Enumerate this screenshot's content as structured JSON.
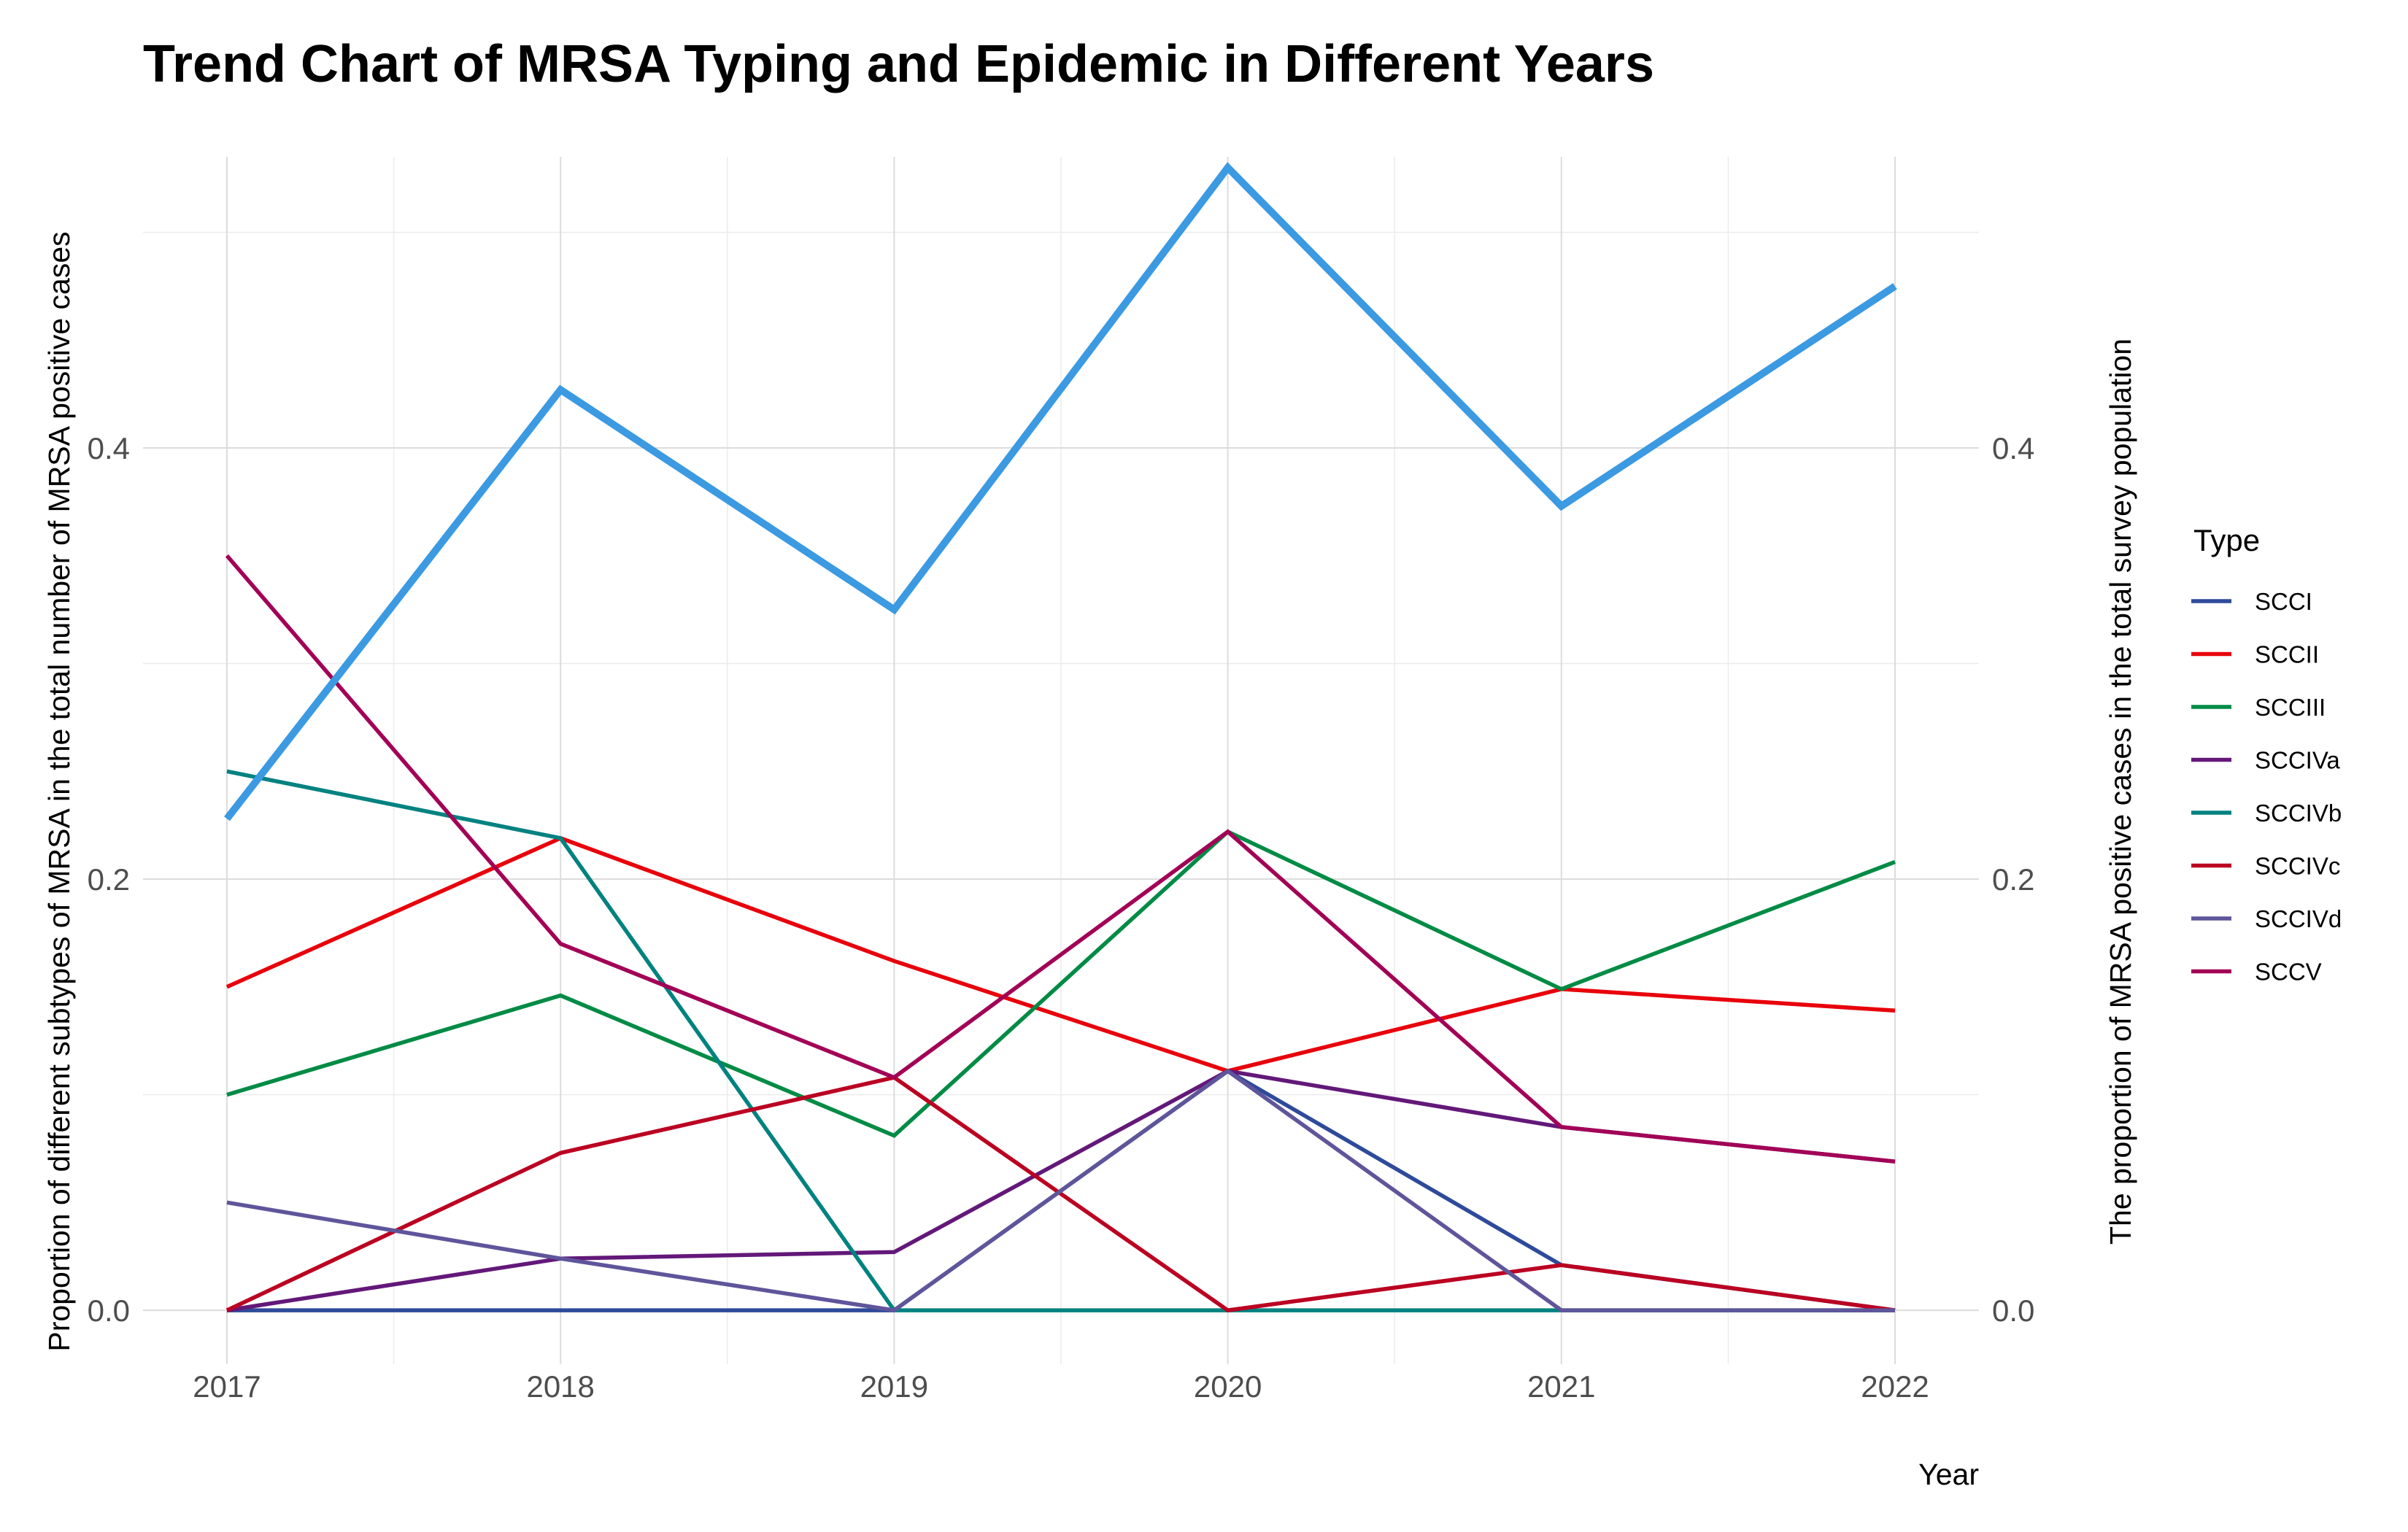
{
  "chart_data": {
    "type": "line",
    "title": "Trend Chart of MRSA Typing and Epidemic in Different Years",
    "xlabel": "Year",
    "ylabel_left": "Proportion of different subtypes of MRSA in the total number of MRSA positive cases",
    "ylabel_right": "The proportion of MRSA positive cases in the total survey population",
    "x": [
      "2017",
      "2018",
      "2019",
      "2020",
      "2021",
      "2022"
    ],
    "ylim": [
      -0.025,
      0.535
    ],
    "yticks": [
      0.0,
      0.2,
      0.4
    ],
    "ytick_labels": [
      "0.0",
      "0.2",
      "0.4"
    ],
    "grid": true,
    "legend_title": "Type",
    "legend_position": "right",
    "series": [
      {
        "name": "SCCI",
        "color": "#2e4a9a",
        "values": [
          0.0,
          0.0,
          0.0,
          0.111,
          0.021,
          0.0
        ]
      },
      {
        "name": "SCCII",
        "color": "#e8000b",
        "values": [
          0.15,
          0.219,
          0.162,
          0.111,
          0.149,
          0.139
        ]
      },
      {
        "name": "SCCIII",
        "color": "#008b45",
        "values": [
          0.1,
          0.146,
          0.081,
          0.222,
          0.149,
          0.208
        ]
      },
      {
        "name": "SCCIVa",
        "color": "#631879",
        "values": [
          0.0,
          0.024,
          0.027,
          0.111,
          0.085,
          0.069
        ]
      },
      {
        "name": "SCCIVb",
        "color": "#008280",
        "values": [
          0.25,
          0.219,
          0.0,
          0.0,
          0.0,
          0.0
        ]
      },
      {
        "name": "SCCIVc",
        "color": "#bb0021",
        "values": [
          0.0,
          0.073,
          0.108,
          0.0,
          0.021,
          0.0
        ]
      },
      {
        "name": "SCCIVd",
        "color": "#5f559b",
        "values": [
          0.05,
          0.024,
          0.0,
          0.111,
          0.0,
          0.0
        ]
      },
      {
        "name": "SCCV",
        "color": "#a20056",
        "values": [
          0.35,
          0.17,
          0.108,
          0.222,
          0.085,
          0.069
        ]
      }
    ],
    "secondary_series": {
      "color": "#3b9ae1",
      "values": [
        0.228,
        0.427,
        0.325,
        0.53,
        0.373,
        0.475
      ]
    }
  }
}
